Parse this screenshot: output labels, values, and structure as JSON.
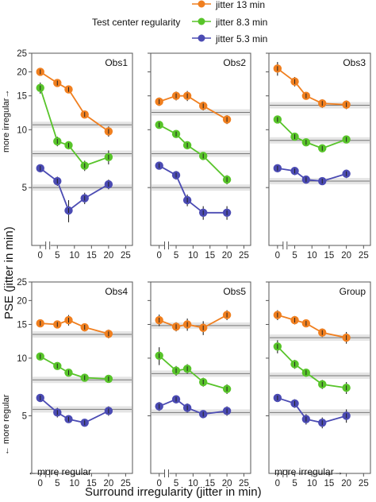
{
  "legend": {
    "header": "Test center regularity",
    "items": [
      {
        "label": "jitter 13 min",
        "color": "#f07f1f"
      },
      {
        "label": "jitter 8.3 min",
        "color": "#58c42a"
      },
      {
        "label": "jitter 5.3 min",
        "color": "#4b4bb3"
      }
    ]
  },
  "y_axis_label": "PSE (jitter in min)",
  "y_top_annotation": "more irregular→",
  "y_bottom_annotation": "← more regular",
  "x_axis_label": "Surround irregularity (jitter in min)",
  "x_left_annotation": "←more regular",
  "x_right_annotation": "more irregular→",
  "chart_data": [
    {
      "type": "line",
      "title": "Obs1",
      "x": [
        0,
        5,
        8.3,
        13,
        20
      ],
      "xticks": [
        0,
        5,
        10,
        15,
        20,
        25
      ],
      "yscale": "log",
      "ylim": [
        2.5,
        25
      ],
      "yticks": [
        5,
        10,
        15,
        20,
        25
      ],
      "series": [
        {
          "name": "jitter 13 min",
          "color": "#f07f1f",
          "values": [
            20,
            17.5,
            16.2,
            12,
            9.8
          ],
          "err": [
            0.5,
            0.5,
            0.5,
            0.5,
            0.6
          ],
          "baseline": 10.6
        },
        {
          "name": "jitter 8.3 min",
          "color": "#58c42a",
          "values": [
            16.5,
            8.7,
            8.3,
            6.5,
            7.2
          ],
          "err": [
            1.1,
            0.5,
            0.4,
            0.4,
            0.6
          ],
          "baseline": 7.5
        },
        {
          "name": "jitter 5.3 min",
          "color": "#4b4bb3",
          "values": [
            6.3,
            5.4,
            3.8,
            4.4,
            5.2
          ],
          "err": [
            0.3,
            0.3,
            0.5,
            0.3,
            0.3
          ],
          "baseline": 5.0
        }
      ]
    },
    {
      "type": "line",
      "title": "Obs2",
      "x": [
        0,
        5,
        8.3,
        13,
        20
      ],
      "xticks": [
        0,
        5,
        10,
        15,
        20,
        25
      ],
      "yscale": "log",
      "ylim": [
        2.5,
        25
      ],
      "series": [
        {
          "name": "jitter 13 min",
          "color": "#f07f1f",
          "values": [
            14,
            15,
            15,
            13.3,
            11.3
          ],
          "err": [
            0.7,
            0.8,
            0.9,
            0.7,
            0.6
          ],
          "baseline": 12.3
        },
        {
          "name": "jitter 8.3 min",
          "color": "#58c42a",
          "values": [
            10.6,
            9.5,
            8.3,
            7.3,
            5.5
          ],
          "err": [
            0.4,
            0.4,
            0.3,
            0.3,
            0.3
          ],
          "baseline": 7.5
        },
        {
          "name": "jitter 5.3 min",
          "color": "#4b4bb3",
          "values": [
            6.5,
            5.8,
            4.3,
            3.7,
            3.7
          ],
          "err": [
            0.3,
            0.3,
            0.3,
            0.3,
            0.3
          ],
          "baseline": 5.0
        }
      ]
    },
    {
      "type": "line",
      "title": "Obs3",
      "x": [
        0,
        5,
        8.3,
        13,
        20
      ],
      "xticks": [
        0,
        5,
        10,
        15,
        20,
        25
      ],
      "yscale": "log",
      "ylim": [
        2.5,
        25
      ],
      "series": [
        {
          "name": "jitter 13 min",
          "color": "#f07f1f",
          "values": [
            20.8,
            17.8,
            15,
            13.7,
            13.5
          ],
          "err": [
            1.7,
            1.0,
            0.6,
            0.7,
            0.7
          ],
          "baseline": 13.4
        },
        {
          "name": "jitter 8.3 min",
          "color": "#58c42a",
          "values": [
            11.3,
            9.2,
            8.6,
            8,
            8.9
          ],
          "err": [
            0.4,
            0.3,
            0.3,
            0.3,
            0.3
          ],
          "baseline": 8.8
        },
        {
          "name": "jitter 5.3 min",
          "color": "#4b4bb3",
          "values": [
            6.3,
            6.1,
            5.5,
            5.4,
            5.9
          ],
          "err": [
            0.3,
            0.3,
            0.2,
            0.2,
            0.3
          ],
          "baseline": 5.4
        }
      ]
    },
    {
      "type": "line",
      "title": "Obs4",
      "x": [
        0,
        5,
        8.3,
        13,
        20
      ],
      "xticks": [
        0,
        5,
        10,
        15,
        20,
        25
      ],
      "yscale": "log",
      "ylim": [
        2.5,
        25
      ],
      "yticks": [
        5,
        10,
        15,
        20,
        25
      ],
      "series": [
        {
          "name": "jitter 13 min",
          "color": "#f07f1f",
          "values": [
            15.2,
            15,
            15.8,
            14.5,
            13.4
          ],
          "err": [
            0.7,
            0.7,
            1.0,
            0.7,
            0.7
          ],
          "baseline": 13.3
        },
        {
          "name": "jitter 8.3 min",
          "color": "#58c42a",
          "values": [
            10.2,
            9.1,
            8.4,
            7.9,
            7.8
          ],
          "err": [
            0.4,
            0.4,
            0.3,
            0.3,
            0.3
          ],
          "baseline": 7.7
        },
        {
          "name": "jitter 5.3 min",
          "color": "#4b4bb3",
          "values": [
            6.2,
            5.2,
            4.8,
            4.6,
            5.3
          ],
          "err": [
            0.3,
            0.3,
            0.2,
            0.2,
            0.3
          ],
          "baseline": 5.4
        }
      ]
    },
    {
      "type": "line",
      "title": "Obs5",
      "x": [
        0,
        5,
        8.3,
        13,
        20
      ],
      "xticks": [
        0,
        5,
        10,
        15,
        20,
        25
      ],
      "yscale": "log",
      "ylim": [
        2.5,
        25
      ],
      "series": [
        {
          "name": "jitter 13 min",
          "color": "#f07f1f",
          "values": [
            15.8,
            14.6,
            15,
            14.4,
            16.8
          ],
          "err": [
            1.1,
            0.8,
            1.1,
            1.2,
            1.0
          ],
          "baseline": 14.8
        },
        {
          "name": "jitter 8.3 min",
          "color": "#58c42a",
          "values": [
            10.3,
            8.6,
            8.8,
            7.5,
            6.9
          ],
          "err": [
            1.1,
            0.5,
            0.5,
            0.4,
            0.4
          ],
          "baseline": 8.3
        },
        {
          "name": "jitter 5.3 min",
          "color": "#4b4bb3",
          "values": [
            5.6,
            6.1,
            5.5,
            5.1,
            5.3
          ],
          "err": [
            0.3,
            0.3,
            0.3,
            0.2,
            0.3
          ],
          "baseline": 5.2
        }
      ]
    },
    {
      "type": "line",
      "title": "Group",
      "x": [
        0,
        5,
        8.3,
        13,
        20
      ],
      "xticks": [
        0,
        5,
        10,
        15,
        20,
        25
      ],
      "yscale": "log",
      "ylim": [
        2.5,
        25
      ],
      "series": [
        {
          "name": "jitter 13 min",
          "color": "#f07f1f",
          "values": [
            16.8,
            15.8,
            15.2,
            13.6,
            12.8
          ],
          "err": [
            1.0,
            0.8,
            0.7,
            0.7,
            0.9
          ],
          "baseline": 12.8
        },
        {
          "name": "jitter 8.3 min",
          "color": "#58c42a",
          "values": [
            11.5,
            9.3,
            8.4,
            7.3,
            7
          ],
          "err": [
            0.9,
            0.5,
            0.4,
            0.4,
            0.5
          ],
          "baseline": 8.1
        },
        {
          "name": "jitter 5.3 min",
          "color": "#4b4bb3",
          "values": [
            6.2,
            5.8,
            4.8,
            4.6,
            5.0
          ],
          "err": [
            0.3,
            0.3,
            0.3,
            0.3,
            0.4
          ],
          "baseline": 5.2
        }
      ]
    }
  ]
}
